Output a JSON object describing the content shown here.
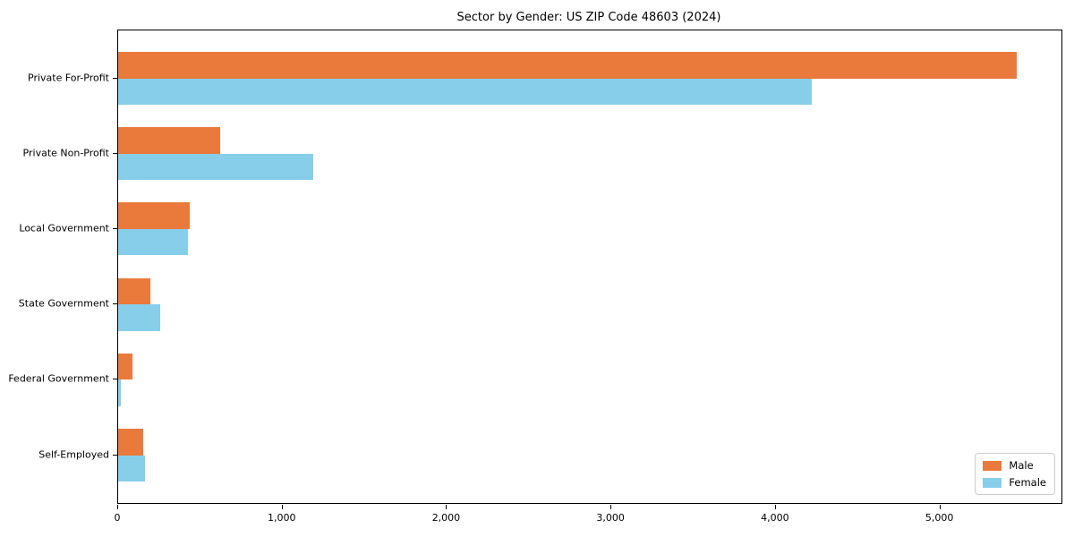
{
  "title": "Sector by Gender: US ZIP Code 48603 (2024)",
  "chart_data": {
    "type": "bar",
    "orientation": "horizontal",
    "title": "Sector by Gender: US ZIP Code 48603 (2024)",
    "categories": [
      "Private For-Profit",
      "Private Non-Profit",
      "Local Government",
      "State Government",
      "Federal Government",
      "Self-Employed"
    ],
    "series": [
      {
        "name": "Male",
        "color": "#EA7A3B",
        "values": [
          5464,
          620,
          433,
          194,
          88,
          151
        ]
      },
      {
        "name": "Female",
        "color": "#87CEEB",
        "values": [
          4216,
          1188,
          426,
          257,
          15,
          166
        ]
      }
    ],
    "xlabel": "",
    "ylabel": "",
    "xlim": [
      0,
      5737
    ],
    "xticks": [
      0,
      1000,
      2000,
      3000,
      4000,
      5000
    ],
    "xtick_labels": [
      "0",
      "1,000",
      "2,000",
      "3,000",
      "4,000",
      "5,000"
    ],
    "grid": false,
    "legend_position": "lower right",
    "background_color": "#ffffff",
    "spine_color": "#000000"
  },
  "legend": {
    "items": [
      {
        "label": "Male",
        "color": "#EA7A3B"
      },
      {
        "label": "Female",
        "color": "#87CEEB"
      }
    ]
  }
}
